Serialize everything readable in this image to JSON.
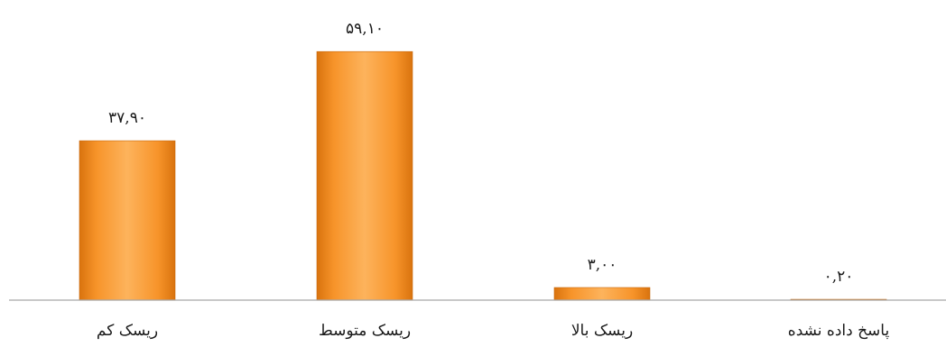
{
  "chart_data": {
    "type": "bar",
    "categories": [
      "ریسک کم",
      "ریسک متوسط",
      "ریسک بالا",
      "پاسخ داده نشده"
    ],
    "values": [
      37.9,
      59.1,
      3.0,
      0.2
    ],
    "data_labels": [
      "۳۷,۹۰",
      "۵۹,۱۰",
      "۳,۰۰",
      "۰,۲۰"
    ],
    "title": "",
    "xlabel": "",
    "ylabel": "",
    "ylim": [
      0,
      60
    ],
    "grid": false,
    "legend": "none",
    "y_axis_visible": false
  },
  "colors": {
    "bar_fill_light": "#FDB35C",
    "bar_fill_mid": "#F7942A",
    "bar_fill_dark": "#D9730E",
    "bar_edge": "#C8680C",
    "axis": "#A6A6A6",
    "text": "#1a1a1a"
  }
}
